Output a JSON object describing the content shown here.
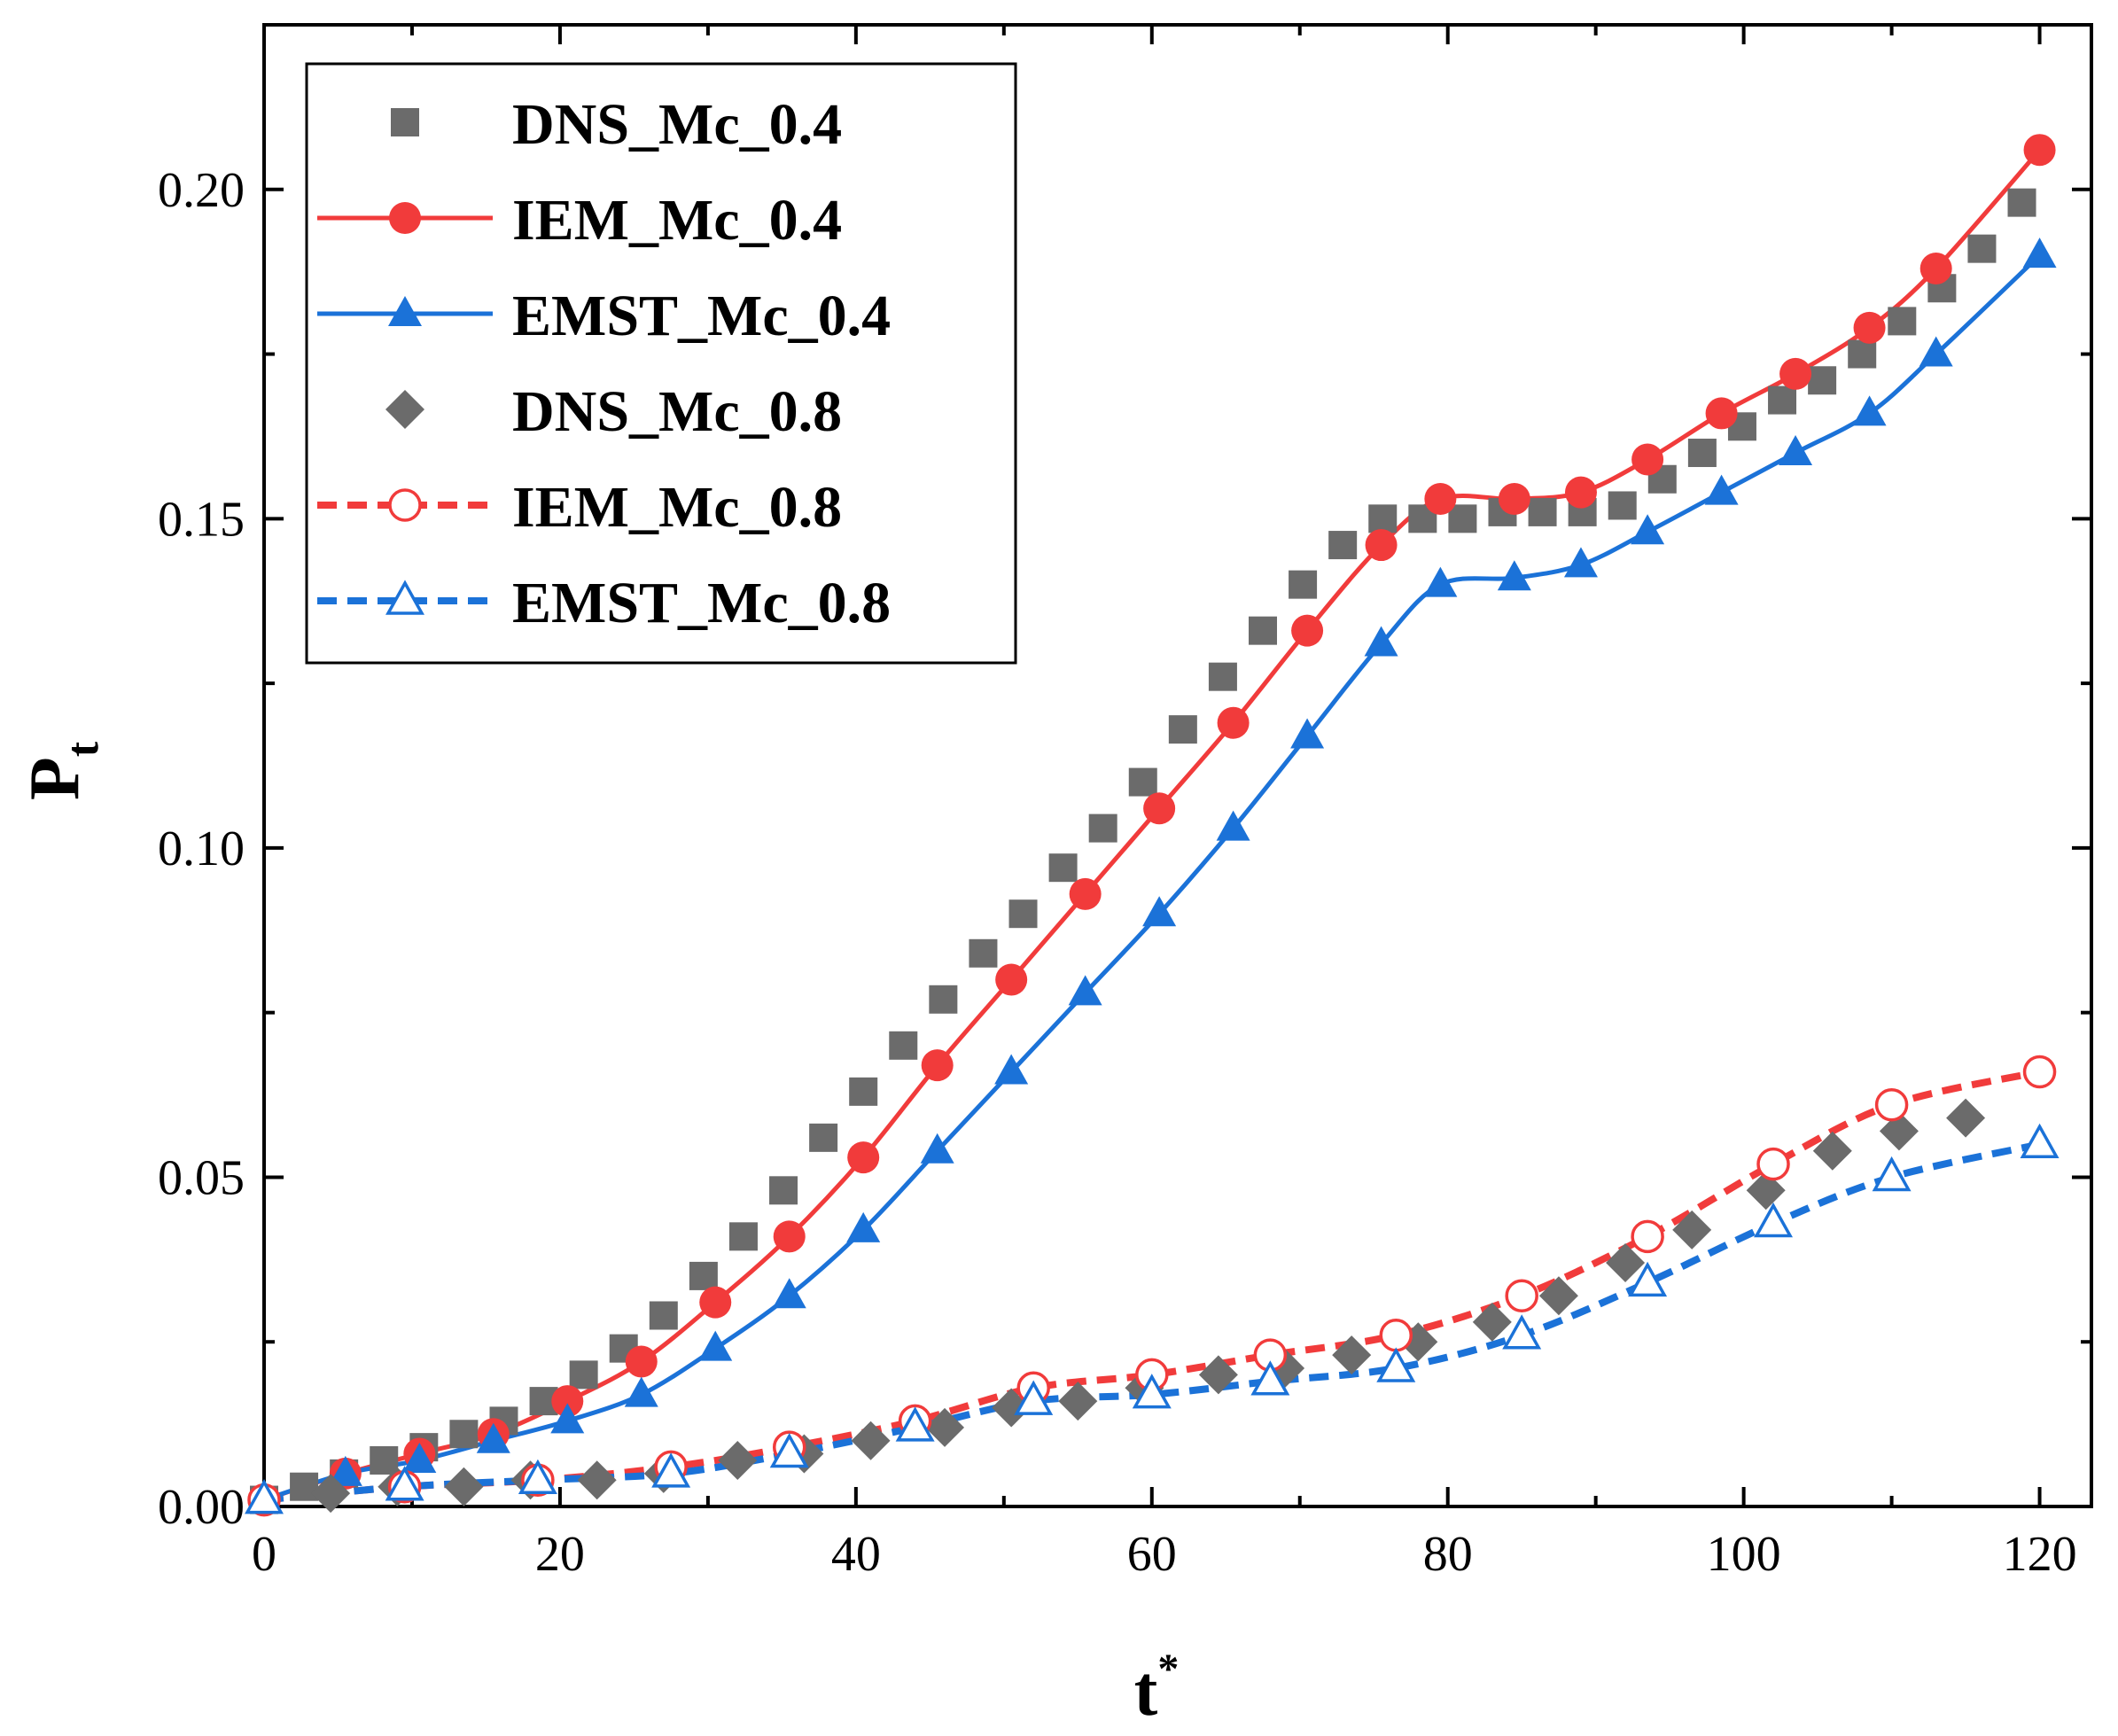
{
  "chart_data": {
    "type": "line",
    "title": "",
    "xlabel": "t",
    "xlabel_sup": "*",
    "ylabel": "P",
    "ylabel_sub": "t",
    "xlim": [
      0,
      123.5
    ],
    "ylim": [
      0,
      0.225
    ],
    "xticks": [
      0,
      20,
      40,
      60,
      80,
      100,
      120
    ],
    "xtick_labels": [
      "0",
      "20",
      "40",
      "60",
      "80",
      "100",
      "120"
    ],
    "yticks": [
      0,
      0.05,
      0.1,
      0.15,
      0.2
    ],
    "ytick_labels": [
      "0.00",
      "0.05",
      "0.10",
      "0.15",
      "0.20"
    ],
    "legend_position": "top-left",
    "series": [
      {
        "name": "DNS_Mc_0.4",
        "color": "#6b6b6b",
        "marker": "square",
        "line": "none",
        "x": [
          0,
          2.7,
          5.4,
          8.1,
          10.8,
          13.5,
          16.2,
          18.9,
          21.6,
          24.3,
          27,
          29.7,
          32.4,
          35.1,
          37.8,
          40.5,
          43.2,
          45.9,
          48.6,
          51.3,
          54,
          56.7,
          59.4,
          62.1,
          64.8,
          67.5,
          70.2,
          72.9,
          75.6,
          78.3,
          81,
          83.7,
          86.4,
          89.1,
          91.8,
          94.5,
          97.2,
          99.9,
          102.6,
          105.3,
          108,
          110.7,
          113.4,
          116.1,
          118.8
        ],
        "y": [
          0.001,
          0.003,
          0.005,
          0.007,
          0.009,
          0.011,
          0.013,
          0.016,
          0.02,
          0.024,
          0.029,
          0.035,
          0.041,
          0.048,
          0.056,
          0.063,
          0.07,
          0.077,
          0.084,
          0.09,
          0.097,
          0.103,
          0.11,
          0.118,
          0.126,
          0.133,
          0.14,
          0.146,
          0.15,
          0.15,
          0.15,
          0.151,
          0.151,
          0.151,
          0.152,
          0.156,
          0.16,
          0.164,
          0.168,
          0.171,
          0.175,
          0.18,
          0.185,
          0.191,
          0.198
        ]
      },
      {
        "name": "IEM_Mc_0.4",
        "color": "#f13b3b",
        "marker": "circle-filled",
        "line": "solid",
        "x": [
          0,
          5.5,
          10.5,
          15.5,
          20.5,
          25.5,
          30.5,
          35.5,
          40.5,
          45.5,
          50.5,
          55.5,
          60.5,
          65.5,
          70.5,
          75.5,
          79.5,
          84.5,
          89,
          93.5,
          98.5,
          103.5,
          108.5,
          113,
          120
        ],
        "y": [
          0.001,
          0.005,
          0.008,
          0.011,
          0.016,
          0.022,
          0.031,
          0.041,
          0.053,
          0.067,
          0.08,
          0.093,
          0.106,
          0.119,
          0.133,
          0.146,
          0.153,
          0.153,
          0.154,
          0.159,
          0.166,
          0.172,
          0.179,
          0.188,
          0.206
        ]
      },
      {
        "name": "EMST_Mc_0.4",
        "color": "#1b72d8",
        "marker": "triangle-filled",
        "line": "solid",
        "x": [
          0,
          5.5,
          10.5,
          15.5,
          20.5,
          25.5,
          30.5,
          35.5,
          40.5,
          45.5,
          50.5,
          55.5,
          60.5,
          65.5,
          70.5,
          75.5,
          79.5,
          84.5,
          89,
          93.5,
          98.5,
          103.5,
          108.5,
          113,
          120
        ],
        "y": [
          0.001,
          0.005,
          0.007,
          0.01,
          0.013,
          0.017,
          0.024,
          0.032,
          0.042,
          0.054,
          0.066,
          0.078,
          0.09,
          0.103,
          0.117,
          0.131,
          0.14,
          0.141,
          0.143,
          0.148,
          0.154,
          0.16,
          0.166,
          0.175,
          0.19
        ]
      },
      {
        "name": "DNS_Mc_0.8",
        "color": "#6b6b6b",
        "marker": "diamond",
        "line": "none",
        "x": [
          4.5,
          9,
          13.5,
          18,
          22.5,
          27,
          32,
          36.5,
          41,
          46,
          50.5,
          55,
          59.5,
          64.5,
          69,
          73.5,
          78,
          83,
          87.5,
          92,
          96.5,
          101.5,
          106,
          110.5,
          115
        ],
        "y": [
          0.002,
          0.003,
          0.003,
          0.004,
          0.004,
          0.005,
          0.007,
          0.008,
          0.01,
          0.012,
          0.015,
          0.016,
          0.018,
          0.02,
          0.021,
          0.023,
          0.025,
          0.028,
          0.032,
          0.037,
          0.042,
          0.048,
          0.054,
          0.057,
          0.059
        ]
      },
      {
        "name": "IEM_Mc_0.8",
        "color": "#f13b3b",
        "marker": "circle-open",
        "line": "dashed",
        "x": [
          0,
          9.5,
          18.5,
          27.5,
          35.5,
          44,
          52,
          60,
          68,
          76.5,
          85,
          93.5,
          102,
          110,
          120
        ],
        "y": [
          0.001,
          0.003,
          0.004,
          0.006,
          0.009,
          0.013,
          0.018,
          0.02,
          0.023,
          0.026,
          0.032,
          0.041,
          0.052,
          0.061,
          0.066
        ]
      },
      {
        "name": "EMST_Mc_0.8",
        "color": "#1b72d8",
        "marker": "triangle-open",
        "line": "dashed",
        "x": [
          0,
          9.5,
          18.5,
          27.5,
          35.5,
          44,
          52,
          60,
          68,
          76.5,
          85,
          93.5,
          102,
          110,
          120
        ],
        "y": [
          0.001,
          0.003,
          0.004,
          0.005,
          0.008,
          0.012,
          0.016,
          0.017,
          0.019,
          0.021,
          0.026,
          0.034,
          0.043,
          0.05,
          0.055
        ]
      }
    ]
  }
}
